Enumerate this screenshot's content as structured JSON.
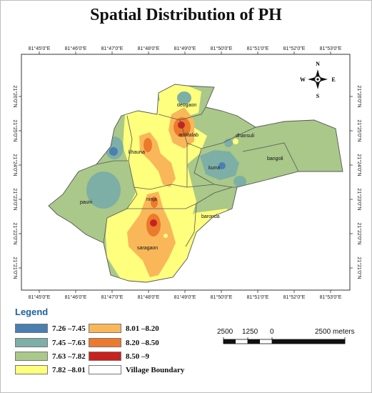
{
  "title": "Spatial Distribution of PH",
  "colors": {
    "c1": "#4a7fb0",
    "c2": "#7dafa6",
    "c3": "#a9c88a",
    "c4": "#ffff7e",
    "c5": "#f9b75a",
    "c6": "#ec7a2c",
    "c7": "#c8221f",
    "boundary": "#555555"
  },
  "longitude_ticks": [
    "81°45'0\"E",
    "81°46'0\"E",
    "81°47'0\"E",
    "81°48'0\"E",
    "81°49'0\"E",
    "81°50'0\"E",
    "81°51'0\"E",
    "81°52'0\"E",
    "81°53'0\"E"
  ],
  "latitude_ticks": [
    "21°26'0\"N",
    "21°25'0\"N",
    "21°24'0\"N",
    "21°23'0\"N",
    "21°22'0\"N",
    "21°21'0\"N",
    "21°20'0\"N"
  ],
  "villages": [
    "deogaon",
    "amlitalab",
    "dhansuli",
    "khauna",
    "kurra",
    "bangoli",
    "pauni",
    "ninja",
    "baronda",
    "saragaon"
  ],
  "north_arrow": {
    "n": "N",
    "s": "S",
    "e": "E",
    "w": "W",
    "icon": "compass-rose-icon"
  },
  "legend": {
    "title": "Legend",
    "items": [
      {
        "label": "7.26 –7.45",
        "color": "#4a7fb0"
      },
      {
        "label": "7.45 –7.63",
        "color": "#7dafa6"
      },
      {
        "label": "7.63 –7.82",
        "color": "#a9c88a"
      },
      {
        "label": "7.82 –8.01",
        "color": "#ffff7e"
      },
      {
        "label": "8.01 –8.20",
        "color": "#f9b75a"
      },
      {
        "label": "8.20 –8.50",
        "color": "#ec7a2c"
      },
      {
        "label": "8.50 –9",
        "color": "#c8221f"
      },
      {
        "label": "Village Boundary",
        "color": "#ffffff"
      }
    ]
  },
  "scale_bar": {
    "labels": [
      "2500",
      "1250",
      "0",
      "2500 meters"
    ]
  }
}
